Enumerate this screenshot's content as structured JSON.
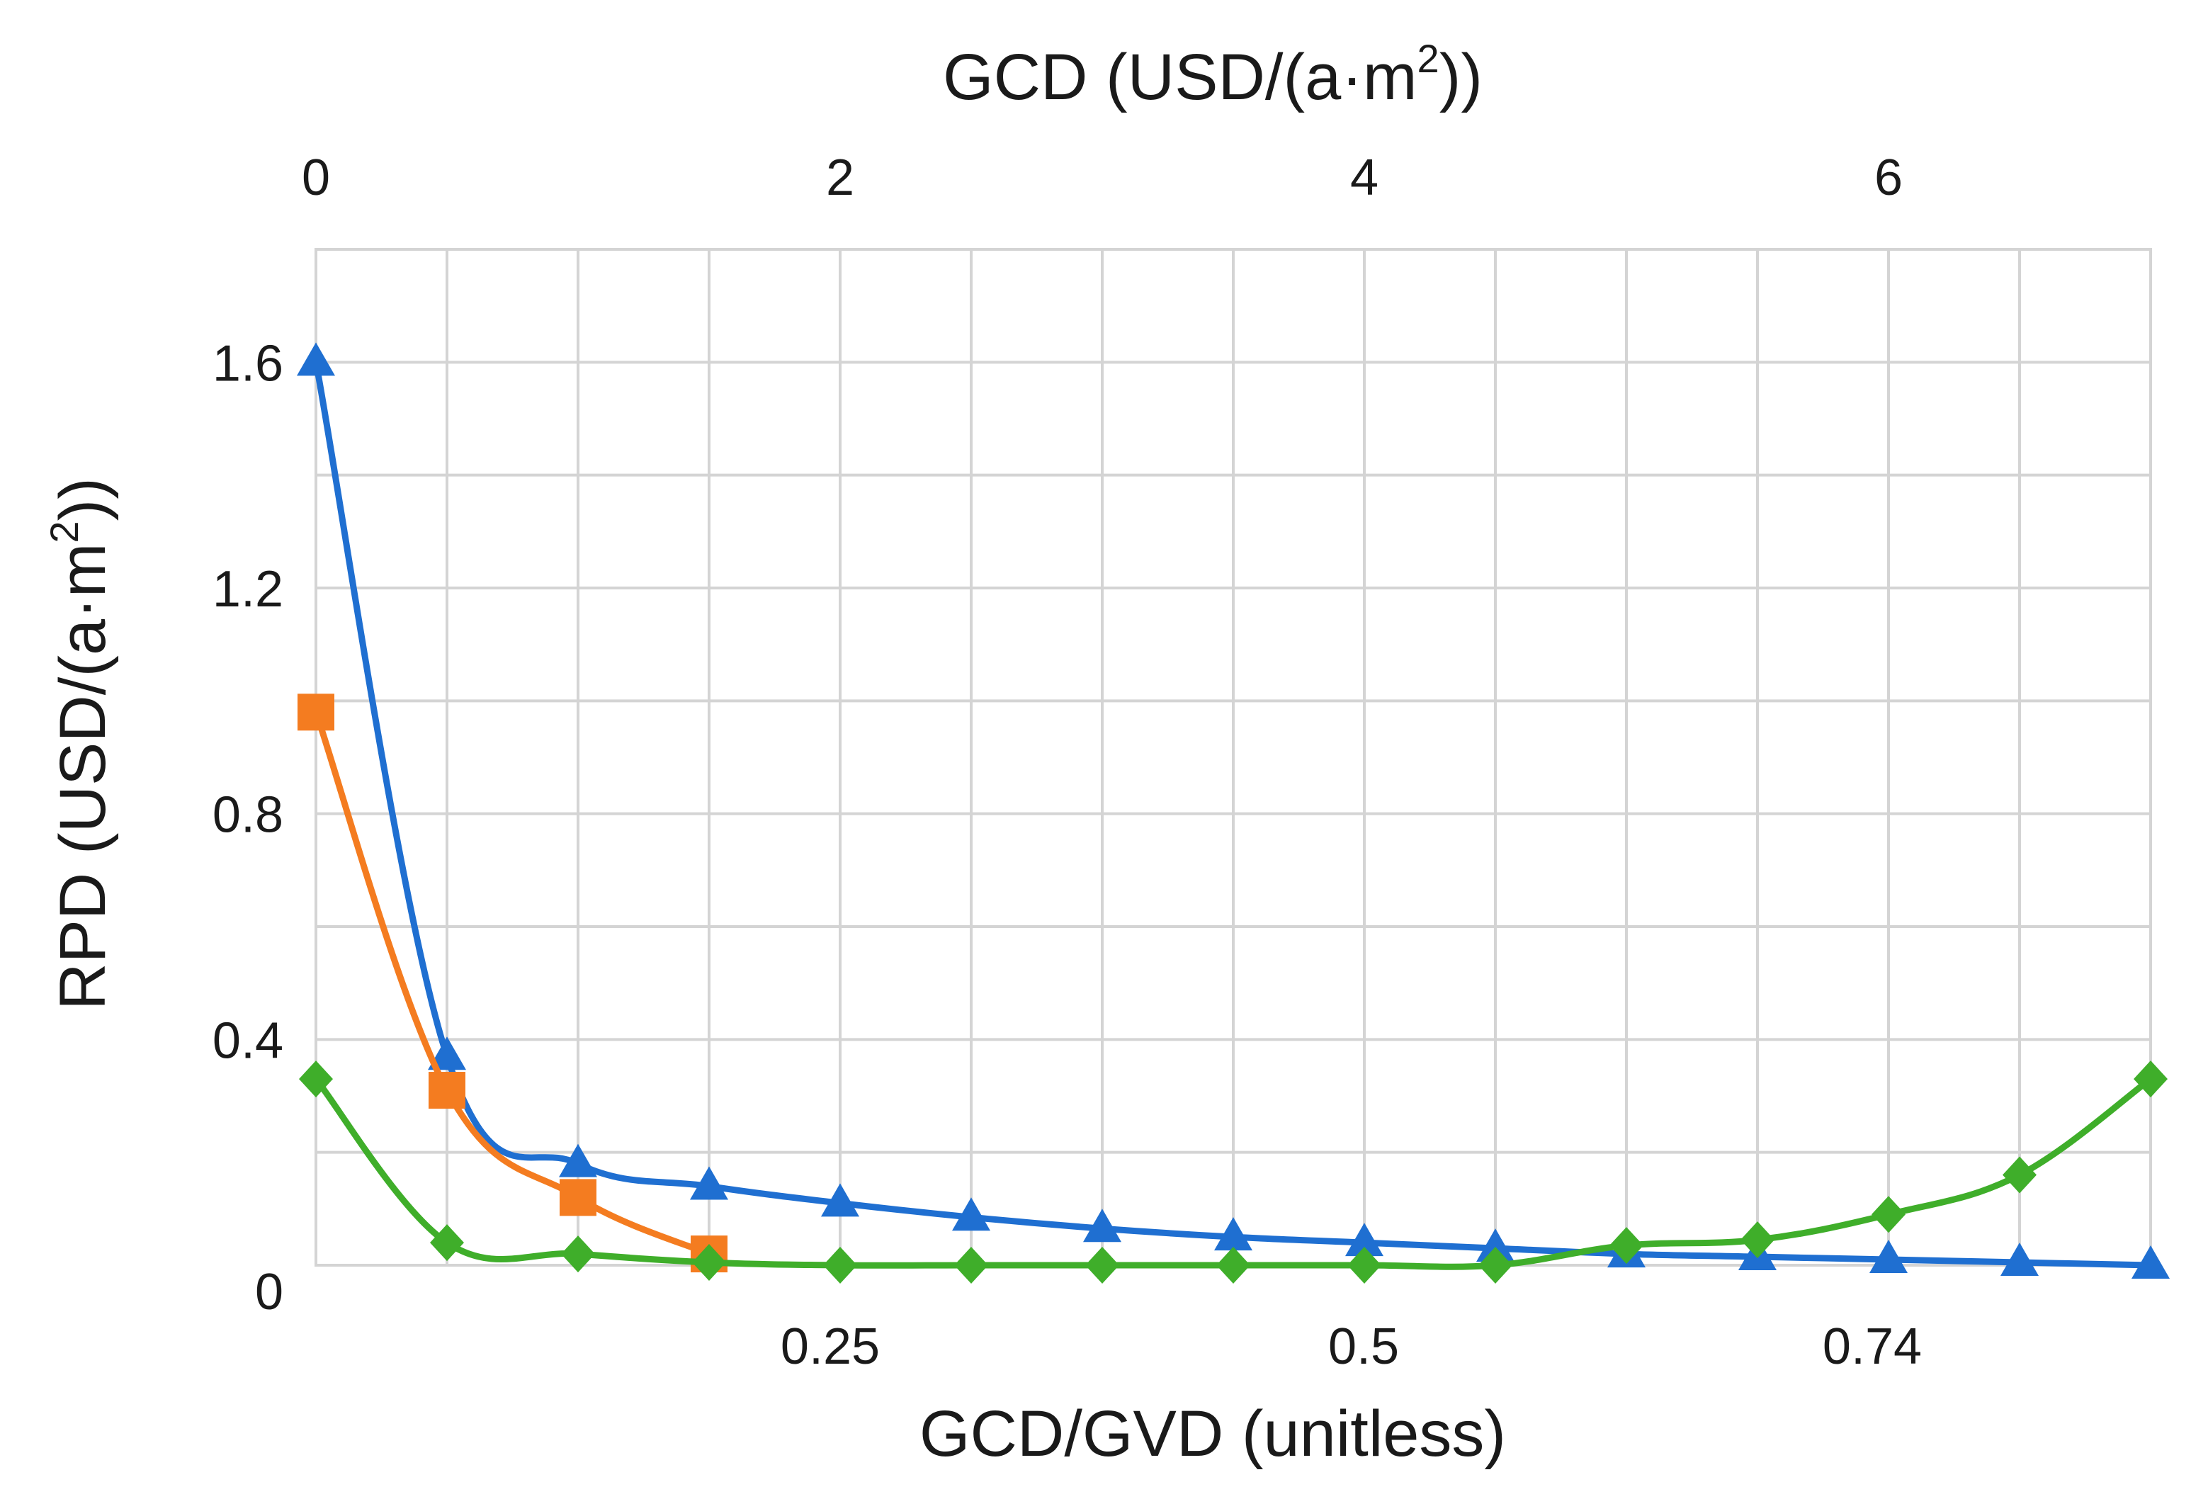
{
  "chart_data": {
    "type": "line",
    "title": "",
    "top_axis": {
      "label_main": "GCD (USD/(a·m",
      "label_sup": "2",
      "label_tail": "))",
      "ticks": [
        0,
        2,
        4,
        6
      ],
      "tick_labels": [
        "0",
        "2",
        "4",
        "6"
      ],
      "range": [
        0,
        7
      ]
    },
    "bottom_axis": {
      "label": "GCD/GVD (unitless)",
      "ticks": [
        0.25,
        0.5,
        0.74
      ],
      "tick_labels": [
        "0.25",
        "0.5",
        "0.74"
      ]
    },
    "y_axis": {
      "label_main": "RPD (USD/(a·m",
      "label_sup": "2",
      "label_tail": "))",
      "ticks": [
        0,
        0.4,
        0.8,
        1.2,
        1.6
      ],
      "tick_labels": [
        "0",
        "0.4",
        "0.8",
        "1.2",
        "1.6"
      ],
      "range": [
        0,
        1.8
      ]
    },
    "grid": true,
    "legend": "none",
    "series": [
      {
        "color": "#1f6fd1",
        "marker": "triangle",
        "x": [
          0,
          0.5,
          1.0,
          1.5,
          2.0,
          2.5,
          3.0,
          3.5,
          4.0,
          4.5,
          5.0,
          5.5,
          6.0,
          6.5,
          7.0
        ],
        "y": [
          1.6,
          0.37,
          0.18,
          0.14,
          0.11,
          0.085,
          0.065,
          0.05,
          0.04,
          0.03,
          0.02,
          0.015,
          0.01,
          0.005,
          0.0
        ]
      },
      {
        "color": "#f47c20",
        "marker": "square",
        "x": [
          0,
          0.5,
          1.0,
          1.5
        ],
        "y": [
          0.98,
          0.31,
          0.12,
          0.02
        ]
      },
      {
        "color": "#3fae2a",
        "marker": "diamond",
        "x": [
          0,
          0.5,
          1.0,
          1.5,
          2.0,
          2.5,
          3.0,
          3.5,
          4.0,
          4.5,
          5.0,
          5.5,
          6.0,
          6.5,
          7.0
        ],
        "y": [
          0.33,
          0.04,
          0.02,
          0.005,
          0.0,
          0.0,
          0.0,
          0.0,
          0.0,
          0.0,
          0.035,
          0.045,
          0.09,
          0.16,
          0.33
        ]
      }
    ]
  }
}
